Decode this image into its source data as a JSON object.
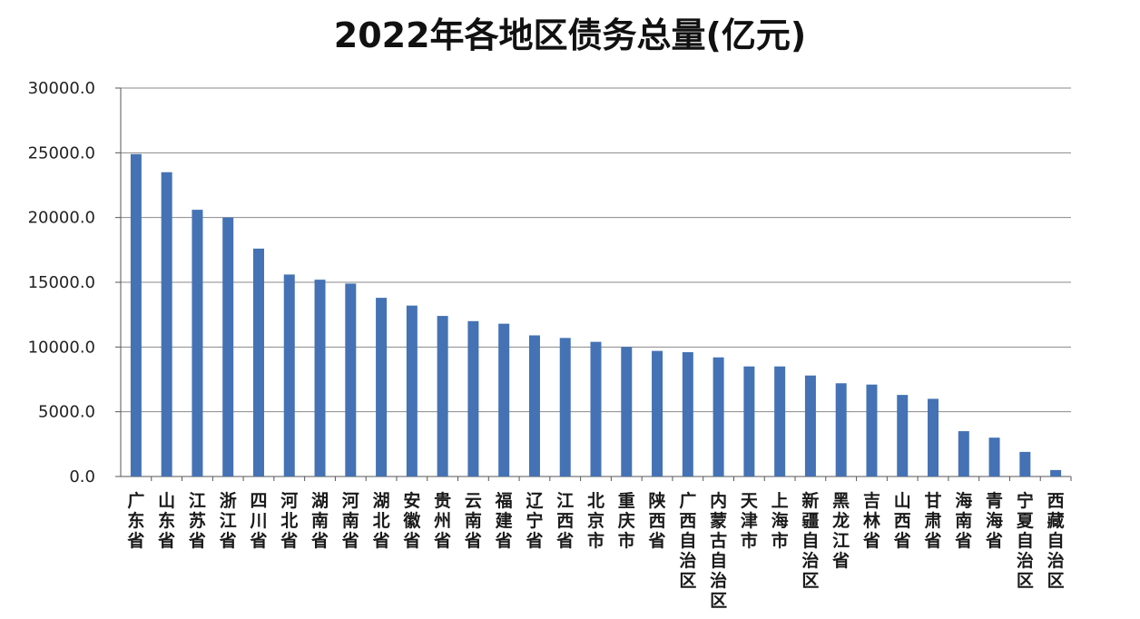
{
  "chart_data": {
    "type": "bar",
    "title": "2022年各地区债务总量(亿元)",
    "xlabel": "",
    "ylabel": "",
    "ylim": [
      0,
      30000
    ],
    "yticks": [
      "30000.0",
      "25000.0",
      "20000.0",
      "15000.0",
      "10000.0",
      "5000.0",
      "0.0"
    ],
    "ytick_values": [
      30000,
      25000,
      20000,
      15000,
      10000,
      5000,
      0
    ],
    "grid": true,
    "legend": "none",
    "bar_color": "#4472b4",
    "categories": [
      "广东省",
      "山东省",
      "江苏省",
      "浙江省",
      "四川省",
      "河北省",
      "湖南省",
      "河南省",
      "湖北省",
      "安徽省",
      "贵州省",
      "云南省",
      "福建省",
      "辽宁省",
      "江西省",
      "北京市",
      "重庆市",
      "陕西省",
      "广西自治区",
      "内蒙古自治区",
      "天津市",
      "上海市",
      "新疆自治区",
      "黑龙江省",
      "吉林省",
      "山西省",
      "甘肃省",
      "海南省",
      "青海省",
      "宁夏自治区",
      "西藏自治区"
    ],
    "values": [
      24900,
      23500,
      20600,
      20000,
      17600,
      15600,
      15200,
      14900,
      13800,
      13200,
      12400,
      12000,
      11800,
      10900,
      10700,
      10400,
      10000,
      9700,
      9600,
      9200,
      8500,
      8500,
      7800,
      7200,
      7100,
      6300,
      6000,
      3500,
      3000,
      1900,
      500
    ]
  }
}
